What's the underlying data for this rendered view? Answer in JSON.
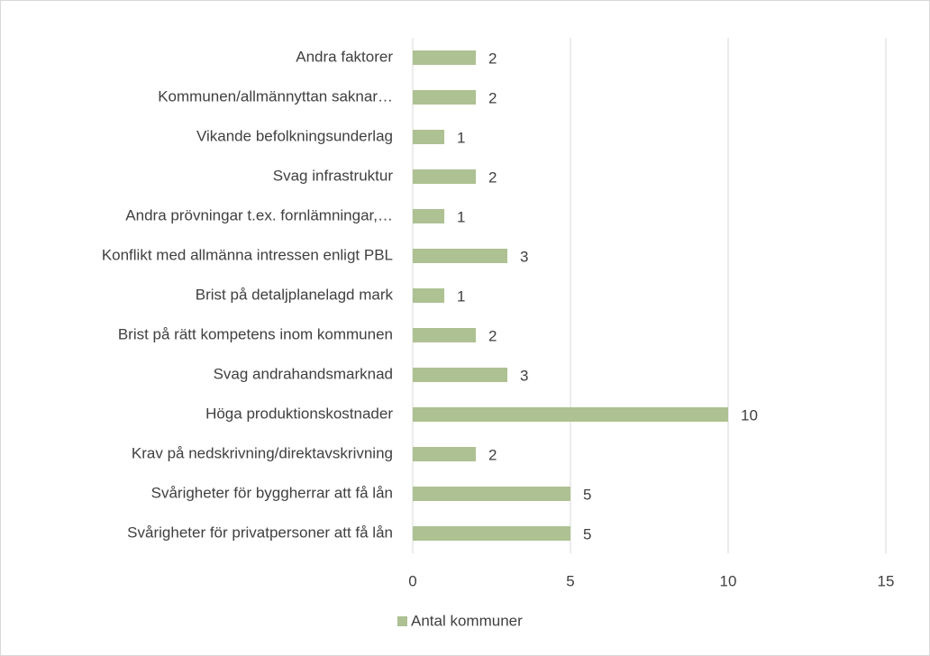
{
  "chart_data": {
    "type": "bar",
    "orientation": "horizontal",
    "categories": [
      "Andra faktorer",
      "Kommunen/allmännyttan saknar…",
      "Vikande befolkningsunderlag",
      "Svag infrastruktur",
      "Andra prövningar t.ex. fornlämningar,…",
      "Konflikt med allmänna intressen enligt PBL",
      "Brist på detaljplanelagd mark",
      "Brist på rätt kompetens inom kommunen",
      "Svag andrahandsmarknad",
      "Höga produktionskostnader",
      "Krav på nedskrivning/direktavskrivning",
      "Svårigheter för byggherrar att få lån",
      "Svårigheter för privatpersoner att få lån"
    ],
    "series": [
      {
        "name": "Antal kommuner",
        "color": "#adc192",
        "values": [
          2,
          2,
          1,
          2,
          1,
          3,
          1,
          2,
          3,
          10,
          2,
          5,
          5
        ]
      }
    ],
    "xlim": [
      0,
      15
    ],
    "xticks": [
      0,
      5,
      10,
      15
    ],
    "grid": true,
    "legend": "bottom"
  }
}
